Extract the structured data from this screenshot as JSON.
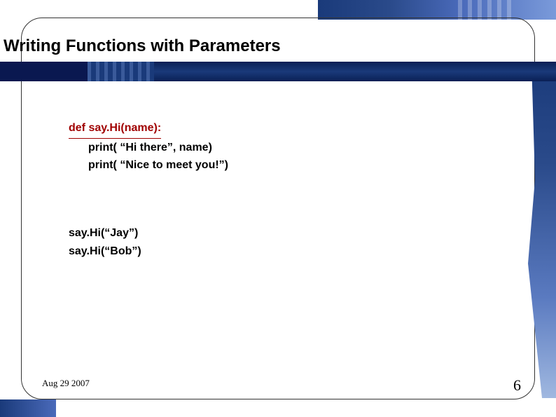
{
  "title": "Writing Functions with Parameters",
  "code": {
    "defLine": "def say.Hi(name):",
    "body1": "print( “Hi there”, name)",
    "body2": "print( “Nice to meet you!”)"
  },
  "calls": {
    "line1": "say.Hi(“Jay”)",
    "line2": "say.Hi(“Bob”)"
  },
  "footer": {
    "date": "Aug 29 2007",
    "page": "6"
  },
  "colors": {
    "defColor": "#a00000",
    "bandDark": "#0a1f55",
    "bandMid": "#1a3a7a",
    "accentLight": "#a0b8e0"
  }
}
